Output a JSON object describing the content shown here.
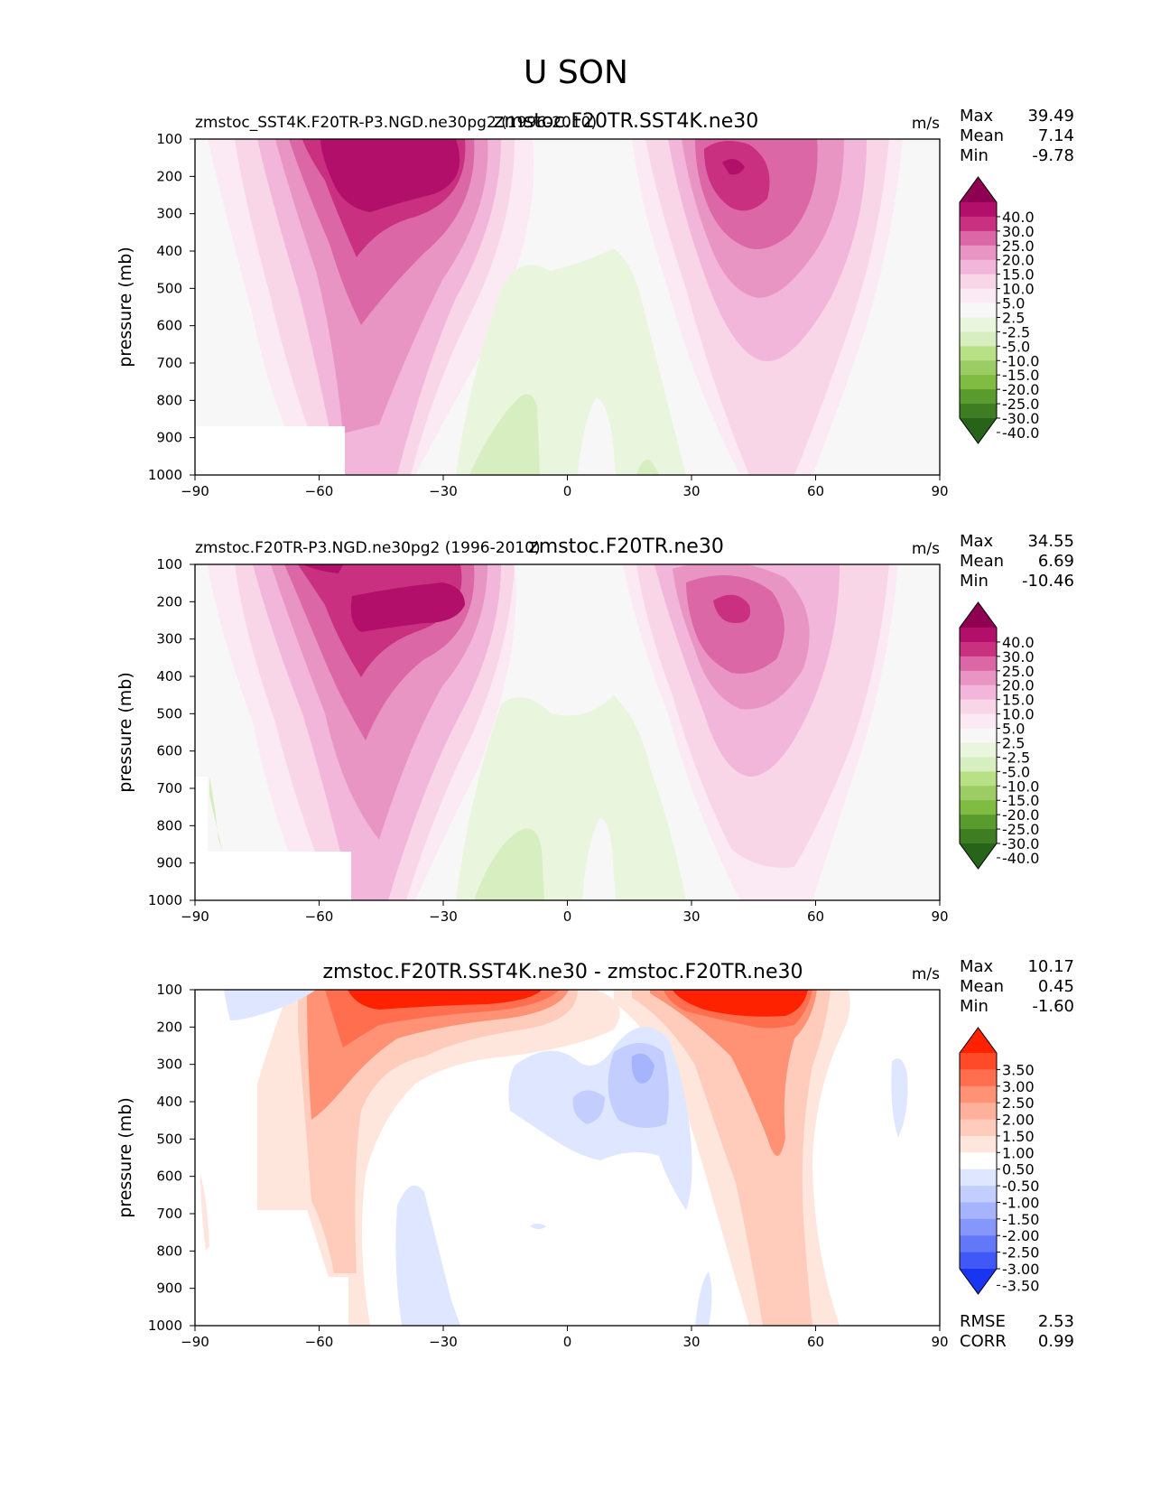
{
  "title": "U SON",
  "chart_data": [
    {
      "type": "contour",
      "title": "zmstoc.F20TR.SST4K.ne30",
      "left_label": "zmstoc_SST4K.F20TR-P3.NGD.ne30pg2 (1996-2010)",
      "units": "m/s",
      "ylabel": "pressure (mb)",
      "xlabel": "",
      "x_ticks": [
        "−90",
        "−60",
        "−30",
        "0",
        "30",
        "60",
        "90"
      ],
      "y_ticks": [
        "100",
        "200",
        "300",
        "400",
        "500",
        "600",
        "700",
        "800",
        "900",
        "1000"
      ],
      "xlim": [
        -90,
        90
      ],
      "ylim": [
        1000,
        100
      ],
      "stats": [
        {
          "label": "Max",
          "value": "39.49"
        },
        {
          "label": "Mean",
          "value": "7.14"
        },
        {
          "label": "Min",
          "value": "-9.78"
        }
      ],
      "colorbar": {
        "levels": [
          "40.0",
          "30.0",
          "25.0",
          "20.0",
          "15.0",
          "10.0",
          "5.0",
          "2.5",
          "-2.5",
          "-5.0",
          "-10.0",
          "-15.0",
          "-20.0",
          "-25.0",
          "-30.0",
          "-40.0"
        ],
        "colors": [
          "#8e0152",
          "#b20f6b",
          "#c9307f",
          "#dc67a6",
          "#e995c3",
          "#f1b6da",
          "#f8d6e8",
          "#fbeaf3",
          "#f7f7f7",
          "#eaf5de",
          "#d7efc0",
          "#b8e186",
          "#9ccd64",
          "#7fbc41",
          "#5a9b2e",
          "#3f7d22",
          "#276419"
        ]
      },
      "jets": [
        {
          "lat": -40,
          "pressure": 170,
          "max": 39.5
        },
        {
          "lat": 40,
          "pressure": 180,
          "max": 34
        }
      ],
      "min_region": {
        "lat": 0,
        "pressure": 800,
        "value": -9.78
      }
    },
    {
      "type": "contour",
      "title": "zmstoc.F20TR.ne30",
      "left_label": "zmstoc.F20TR-P3.NGD.ne30pg2 (1996-2010)",
      "units": "m/s",
      "ylabel": "pressure (mb)",
      "xlabel": "",
      "x_ticks": [
        "−90",
        "−60",
        "−30",
        "0",
        "30",
        "60",
        "90"
      ],
      "y_ticks": [
        "100",
        "200",
        "300",
        "400",
        "500",
        "600",
        "700",
        "800",
        "900",
        "1000"
      ],
      "xlim": [
        -90,
        90
      ],
      "ylim": [
        1000,
        100
      ],
      "stats": [
        {
          "label": "Max",
          "value": "34.55"
        },
        {
          "label": "Mean",
          "value": "6.69"
        },
        {
          "label": "Min",
          "value": "-10.46"
        }
      ],
      "colorbar": {
        "levels": [
          "40.0",
          "30.0",
          "25.0",
          "20.0",
          "15.0",
          "10.0",
          "5.0",
          "2.5",
          "-2.5",
          "-5.0",
          "-10.0",
          "-15.0",
          "-20.0",
          "-25.0",
          "-30.0",
          "-40.0"
        ],
        "colors": [
          "#8e0152",
          "#b20f6b",
          "#c9307f",
          "#dc67a6",
          "#e995c3",
          "#f1b6da",
          "#f8d6e8",
          "#fbeaf3",
          "#f7f7f7",
          "#eaf5de",
          "#d7efc0",
          "#b8e186",
          "#9ccd64",
          "#7fbc41",
          "#5a9b2e",
          "#3f7d22",
          "#276419"
        ]
      },
      "jets": [
        {
          "lat": -42,
          "pressure": 220,
          "max": 34.5
        },
        {
          "lat": 38,
          "pressure": 230,
          "max": 32
        }
      ],
      "min_region": {
        "lat": 0,
        "pressure": 800,
        "value": -10.46
      }
    },
    {
      "type": "contour-difference",
      "title": "zmstoc.F20TR.SST4K.ne30 - zmstoc.F20TR.ne30",
      "left_label": "",
      "units": "m/s",
      "ylabel": "pressure (mb)",
      "xlabel": "",
      "x_ticks": [
        "−90",
        "−60",
        "−30",
        "0",
        "30",
        "60",
        "90"
      ],
      "y_ticks": [
        "100",
        "200",
        "300",
        "400",
        "500",
        "600",
        "700",
        "800",
        "900",
        "1000"
      ],
      "xlim": [
        -90,
        90
      ],
      "ylim": [
        1000,
        100
      ],
      "stats": [
        {
          "label": "Max",
          "value": "10.17"
        },
        {
          "label": "Mean",
          "value": "0.45"
        },
        {
          "label": "Min",
          "value": "-1.60"
        }
      ],
      "bottom_stats": [
        {
          "label": "RMSE",
          "value": "2.53"
        },
        {
          "label": "CORR",
          "value": "0.99"
        }
      ],
      "colorbar": {
        "levels": [
          "3.50",
          "3.00",
          "2.50",
          "2.00",
          "1.50",
          "1.00",
          "0.50",
          "-0.50",
          "-1.00",
          "-1.50",
          "-2.00",
          "-2.50",
          "-3.00",
          "-3.50"
        ],
        "colors": [
          "#ff2200",
          "#ff4a2a",
          "#ff6e4f",
          "#ff9175",
          "#ffb09a",
          "#ffccbc",
          "#ffe6dd",
          "#ffffff",
          "#dfe6ff",
          "#c3cefe",
          "#a5b4fd",
          "#8597fb",
          "#6378f8",
          "#4058f5",
          "#1a35f2"
        ]
      }
    }
  ]
}
